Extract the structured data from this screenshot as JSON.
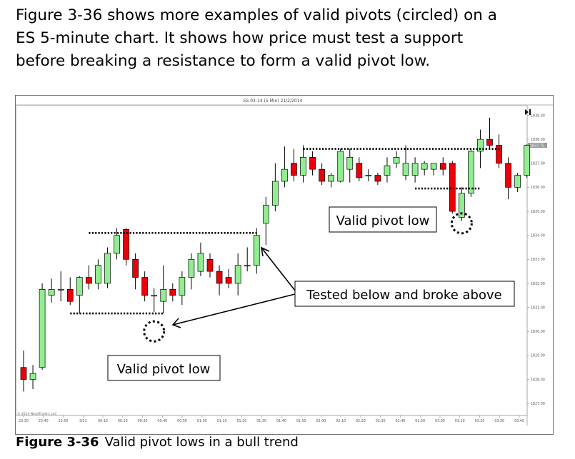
{
  "intro": {
    "lines": [
      "Figure 3-36 shows more examples of valid pivots (circled) on a",
      "ES 5-minute chart. It shows how price must test a support",
      "before breaking a resistance to form a valid pivot low."
    ]
  },
  "caption": {
    "label": "Figure 3-36",
    "text": "Valid pivot lows in a bull trend"
  },
  "chart_data": {
    "type": "candlestick",
    "title": "ES 03-14 (5 Min)  21/2/2014",
    "copyright": "© 2014 NinjaTrader, LLC",
    "ylim": [
      1826.5,
      1839.4
    ],
    "y_ticks": [
      "1839.00",
      "1838.00",
      "1837.00",
      "1836.00",
      "1835.00",
      "1834.00",
      "1833.00",
      "1832.00",
      "1831.00",
      "1830.00",
      "1829.00",
      "1828.00",
      "1827.00"
    ],
    "y_tick_values": [
      1839,
      1838,
      1837,
      1836,
      1835,
      1834,
      1833,
      1832,
      1831,
      1830,
      1829,
      1828,
      1827
    ],
    "x_ticks": [
      "23:30",
      "23:40",
      "23:50",
      "3/21",
      "00:10",
      "00:20",
      "00:30",
      "00:40",
      "00:50",
      "01:00",
      "01:10",
      "01:20",
      "01:30",
      "01:40",
      "01:50",
      "02:00",
      "02:10",
      "02:20",
      "02:30",
      "02:40",
      "02:50",
      "03:00",
      "03:10",
      "03:20",
      "03:30",
      "03:40"
    ],
    "last_price": "1837.75",
    "up_color": "#90ee90",
    "down_color": "#e8000b",
    "candles": [
      {
        "o": 1828.5,
        "h": 1829.2,
        "l": 1827.5,
        "c": 1828.0
      },
      {
        "o": 1828.0,
        "h": 1828.6,
        "l": 1827.6,
        "c": 1828.25
      },
      {
        "o": 1828.5,
        "h": 1832.0,
        "l": 1828.4,
        "c": 1831.75
      },
      {
        "o": 1831.5,
        "h": 1832.2,
        "l": 1831.2,
        "c": 1831.75
      },
      {
        "o": 1831.75,
        "h": 1832.5,
        "l": 1831.25,
        "c": 1831.75
      },
      {
        "o": 1831.75,
        "h": 1832.25,
        "l": 1831.1,
        "c": 1831.25
      },
      {
        "o": 1831.5,
        "h": 1832.3,
        "l": 1830.75,
        "c": 1832.25
      },
      {
        "o": 1832.25,
        "h": 1832.75,
        "l": 1831.75,
        "c": 1832.0
      },
      {
        "o": 1832.0,
        "h": 1833.0,
        "l": 1831.75,
        "c": 1832.75
      },
      {
        "o": 1832.0,
        "h": 1833.5,
        "l": 1831.8,
        "c": 1833.25
      },
      {
        "o": 1833.25,
        "h": 1834.3,
        "l": 1833.0,
        "c": 1834.0
      },
      {
        "o": 1834.25,
        "h": 1834.3,
        "l": 1832.75,
        "c": 1833.0
      },
      {
        "o": 1833.0,
        "h": 1833.25,
        "l": 1831.75,
        "c": 1832.25
      },
      {
        "o": 1832.25,
        "h": 1832.5,
        "l": 1831.25,
        "c": 1831.5
      },
      {
        "o": 1831.5,
        "h": 1831.8,
        "l": 1830.8,
        "c": 1831.5
      },
      {
        "o": 1831.25,
        "h": 1832.75,
        "l": 1830.75,
        "c": 1831.75
      },
      {
        "o": 1831.75,
        "h": 1832.0,
        "l": 1831.25,
        "c": 1831.5
      },
      {
        "o": 1831.5,
        "h": 1832.5,
        "l": 1831.1,
        "c": 1832.25
      },
      {
        "o": 1832.25,
        "h": 1833.25,
        "l": 1831.75,
        "c": 1833.0
      },
      {
        "o": 1832.5,
        "h": 1833.7,
        "l": 1832.3,
        "c": 1833.25
      },
      {
        "o": 1833.0,
        "h": 1833.25,
        "l": 1832.25,
        "c": 1832.5
      },
      {
        "o": 1832.5,
        "h": 1832.75,
        "l": 1831.5,
        "c": 1832.0
      },
      {
        "o": 1832.25,
        "h": 1832.6,
        "l": 1831.8,
        "c": 1832.0
      },
      {
        "o": 1832.0,
        "h": 1833.25,
        "l": 1831.5,
        "c": 1832.75
      },
      {
        "o": 1832.75,
        "h": 1833.5,
        "l": 1832.5,
        "c": 1832.75
      },
      {
        "o": 1832.75,
        "h": 1834.3,
        "l": 1832.4,
        "c": 1834.0
      },
      {
        "o": 1834.5,
        "h": 1835.6,
        "l": 1833.6,
        "c": 1835.25
      },
      {
        "o": 1835.25,
        "h": 1837.0,
        "l": 1835.0,
        "c": 1836.25
      },
      {
        "o": 1836.25,
        "h": 1837.7,
        "l": 1836.0,
        "c": 1836.75
      },
      {
        "o": 1837.0,
        "h": 1837.6,
        "l": 1836.25,
        "c": 1836.5
      },
      {
        "o": 1836.5,
        "h": 1837.75,
        "l": 1836.2,
        "c": 1837.25
      },
      {
        "o": 1837.25,
        "h": 1837.5,
        "l": 1836.5,
        "c": 1836.75
      },
      {
        "o": 1836.75,
        "h": 1837.0,
        "l": 1836.1,
        "c": 1836.25
      },
      {
        "o": 1836.25,
        "h": 1836.6,
        "l": 1836.0,
        "c": 1836.5
      },
      {
        "o": 1836.25,
        "h": 1837.6,
        "l": 1836.2,
        "c": 1837.5
      },
      {
        "o": 1836.75,
        "h": 1837.6,
        "l": 1836.2,
        "c": 1837.25
      },
      {
        "o": 1837.0,
        "h": 1837.25,
        "l": 1836.25,
        "c": 1836.4
      },
      {
        "o": 1836.5,
        "h": 1836.75,
        "l": 1836.25,
        "c": 1836.5
      },
      {
        "o": 1836.5,
        "h": 1836.6,
        "l": 1836.1,
        "c": 1836.25
      },
      {
        "o": 1836.5,
        "h": 1837.25,
        "l": 1836.2,
        "c": 1836.9
      },
      {
        "o": 1837.0,
        "h": 1837.5,
        "l": 1836.8,
        "c": 1837.25
      },
      {
        "o": 1836.5,
        "h": 1837.75,
        "l": 1836.3,
        "c": 1837.0
      },
      {
        "o": 1836.5,
        "h": 1837.25,
        "l": 1836.2,
        "c": 1837.0
      },
      {
        "o": 1836.75,
        "h": 1837.1,
        "l": 1836.5,
        "c": 1837.0
      },
      {
        "o": 1836.75,
        "h": 1837.0,
        "l": 1836.5,
        "c": 1837.0
      },
      {
        "o": 1837.0,
        "h": 1837.25,
        "l": 1836.5,
        "c": 1836.75
      },
      {
        "o": 1837.0,
        "h": 1837.1,
        "l": 1834.9,
        "c": 1835.0
      },
      {
        "o": 1834.75,
        "h": 1836.0,
        "l": 1834.6,
        "c": 1835.75
      },
      {
        "o": 1835.75,
        "h": 1837.6,
        "l": 1835.6,
        "c": 1837.5
      },
      {
        "o": 1837.5,
        "h": 1838.4,
        "l": 1836.8,
        "c": 1838.0
      },
      {
        "o": 1838.0,
        "h": 1838.9,
        "l": 1837.6,
        "c": 1837.75
      },
      {
        "o": 1837.75,
        "h": 1838.2,
        "l": 1836.8,
        "c": 1837.0
      },
      {
        "o": 1837.0,
        "h": 1837.25,
        "l": 1835.5,
        "c": 1836.0
      },
      {
        "o": 1836.0,
        "h": 1836.6,
        "l": 1835.8,
        "c": 1836.5
      },
      {
        "o": 1836.5,
        "h": 1837.8,
        "l": 1836.4,
        "c": 1837.75
      }
    ],
    "levels": [
      {
        "name": "support-level-1",
        "price": 1830.75,
        "from": 5,
        "to": 15
      },
      {
        "name": "resistance-level-1",
        "price": 1834.1,
        "from": 7,
        "to": 25
      },
      {
        "name": "resistance-level-2",
        "price": 1837.6,
        "from": 30,
        "to": 51
      },
      {
        "name": "support-level-2",
        "price": 1835.95,
        "from": 42,
        "to": 49
      }
    ],
    "circles": [
      {
        "name": "pivot-circle-1",
        "index": 14,
        "price": 1830.0
      },
      {
        "name": "pivot-circle-2",
        "index": 47,
        "price": 1834.5
      }
    ],
    "annotations": {
      "pivot_low_right": "Valid pivot low",
      "tested": "Tested below and broke above",
      "pivot_low_left": "Valid pivot low"
    }
  }
}
